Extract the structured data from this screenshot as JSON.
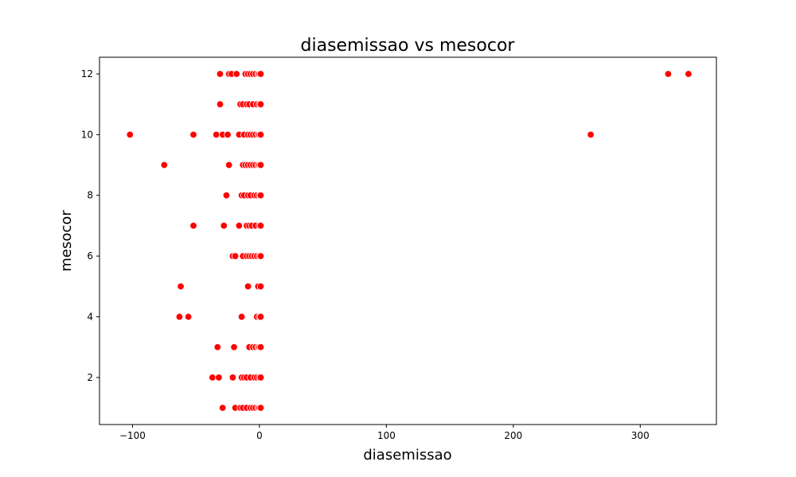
{
  "chart_data": {
    "type": "scatter",
    "title": "diasemissao vs mesocor",
    "xlabel": "diasemissao",
    "ylabel": "mesocor",
    "xlim": [
      -126,
      360
    ],
    "ylim": [
      0.45,
      12.55
    ],
    "xticks": [
      -100,
      0,
      100,
      200,
      300
    ],
    "yticks": [
      2,
      4,
      6,
      8,
      10,
      12
    ],
    "grid": false,
    "legend": "none",
    "marker_color": "#ff0000",
    "marker_edge": "#ffffff",
    "series": [
      {
        "x": [
          -31,
          -24,
          -22,
          -18,
          -11,
          -9,
          -7,
          -5,
          -3,
          -1,
          0,
          1,
          322,
          338,
          -31,
          -15,
          -13,
          -10,
          -8,
          -5,
          -2,
          0,
          1,
          -102,
          -52,
          -34,
          -29,
          -25,
          -16,
          -12,
          -9,
          -7,
          -5,
          -3,
          -1,
          0,
          1,
          261,
          -75,
          -24,
          -13,
          -11,
          -9,
          -7,
          -5,
          -3,
          -1,
          0,
          1,
          -26,
          -14,
          -12,
          -9,
          -7,
          -4,
          -2,
          0,
          1,
          -52,
          -28,
          -16,
          -10,
          -8,
          -6,
          -3,
          0,
          1,
          -21,
          -19,
          -13,
          -10,
          -8,
          -6,
          -4,
          -2,
          0,
          1,
          -62,
          -9,
          -1,
          1,
          -63,
          -56,
          -14,
          -2,
          0,
          1,
          -33,
          -20,
          -8,
          -5,
          -3,
          -1,
          0,
          1,
          -37,
          -32,
          -21,
          -14,
          -12,
          -10,
          -7,
          -4,
          -2,
          0,
          1,
          -29,
          -19,
          -15,
          -13,
          -10,
          -7,
          -5,
          -3,
          -1,
          0,
          1
        ],
        "y": [
          12,
          12,
          12,
          12,
          12,
          12,
          12,
          12,
          12,
          12,
          12,
          12,
          12,
          12,
          11,
          11,
          11,
          11,
          11,
          11,
          11,
          11,
          11,
          10,
          10,
          10,
          10,
          10,
          10,
          10,
          10,
          10,
          10,
          10,
          10,
          10,
          10,
          10,
          9,
          9,
          9,
          9,
          9,
          9,
          9,
          9,
          9,
          9,
          9,
          8,
          8,
          8,
          8,
          8,
          8,
          8,
          8,
          8,
          7,
          7,
          7,
          7,
          7,
          7,
          7,
          7,
          7,
          6,
          6,
          6,
          6,
          6,
          6,
          6,
          6,
          6,
          6,
          5,
          5,
          5,
          5,
          4,
          4,
          4,
          4,
          4,
          4,
          3,
          3,
          3,
          3,
          3,
          3,
          3,
          3,
          2,
          2,
          2,
          2,
          2,
          2,
          2,
          2,
          2,
          2,
          2,
          1,
          1,
          1,
          1,
          1,
          1,
          1,
          1,
          1,
          1,
          1
        ]
      }
    ]
  }
}
